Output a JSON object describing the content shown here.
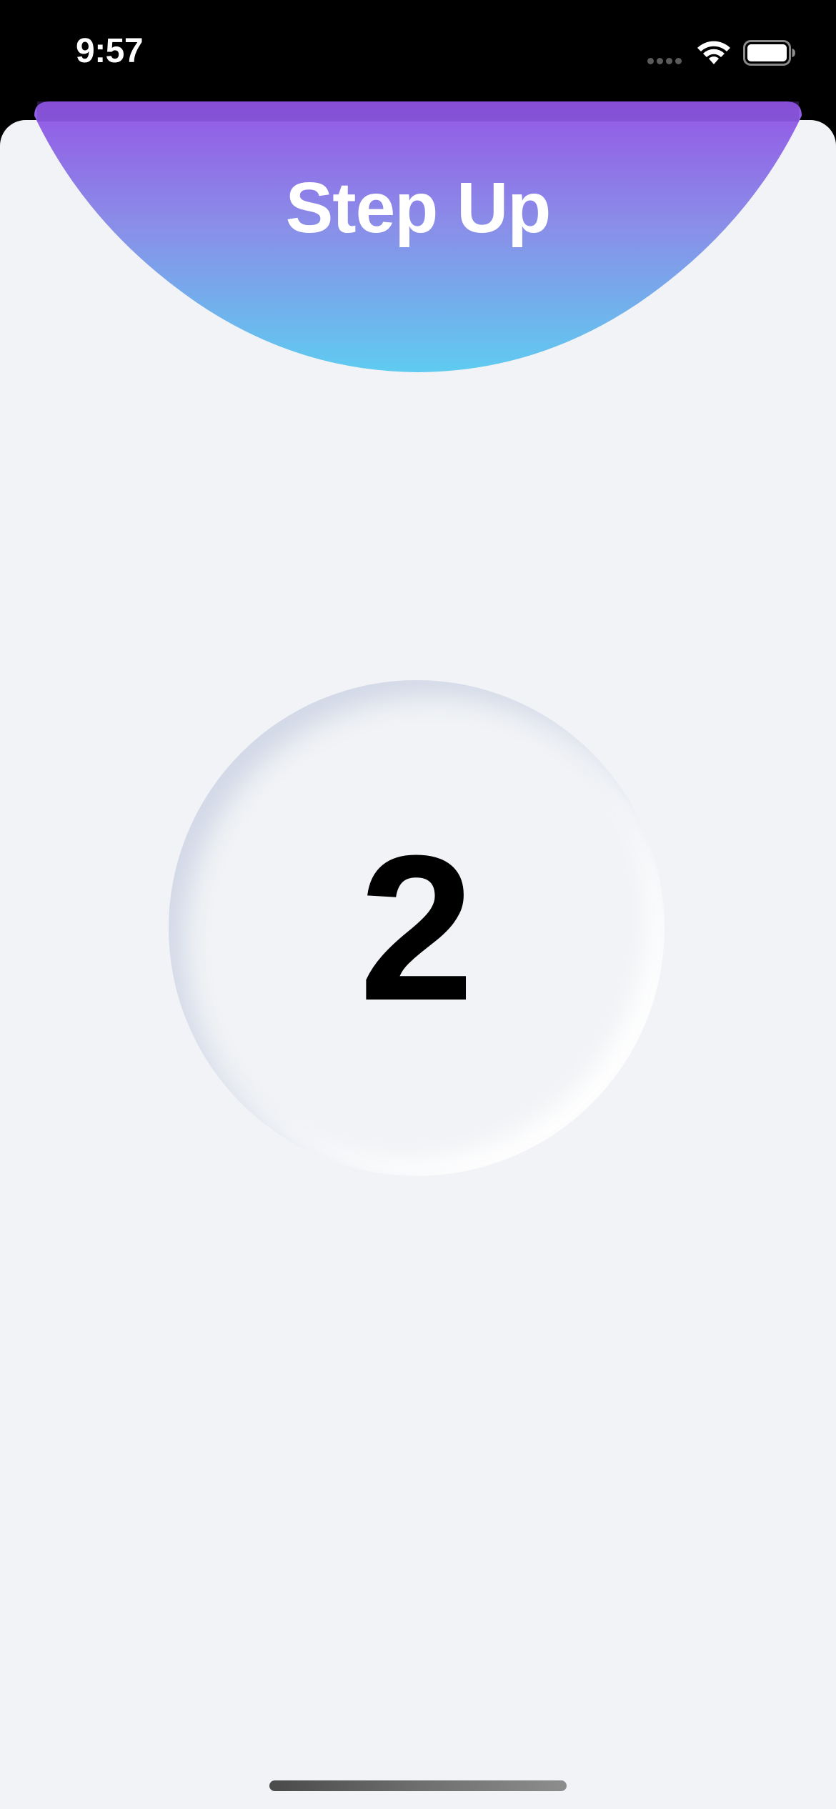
{
  "status_bar": {
    "time": "9:57"
  },
  "header": {
    "title": "Step Up",
    "gradient_top": "#9457e6",
    "gradient_bottom": "#5fcbf0"
  },
  "counter": {
    "value": "2"
  },
  "colors": {
    "background": "#f1f3f6",
    "status_bar": "#000000"
  },
  "icons": {
    "signal": "cellular-signal-icon",
    "wifi": "wifi-icon",
    "battery": "battery-icon"
  }
}
